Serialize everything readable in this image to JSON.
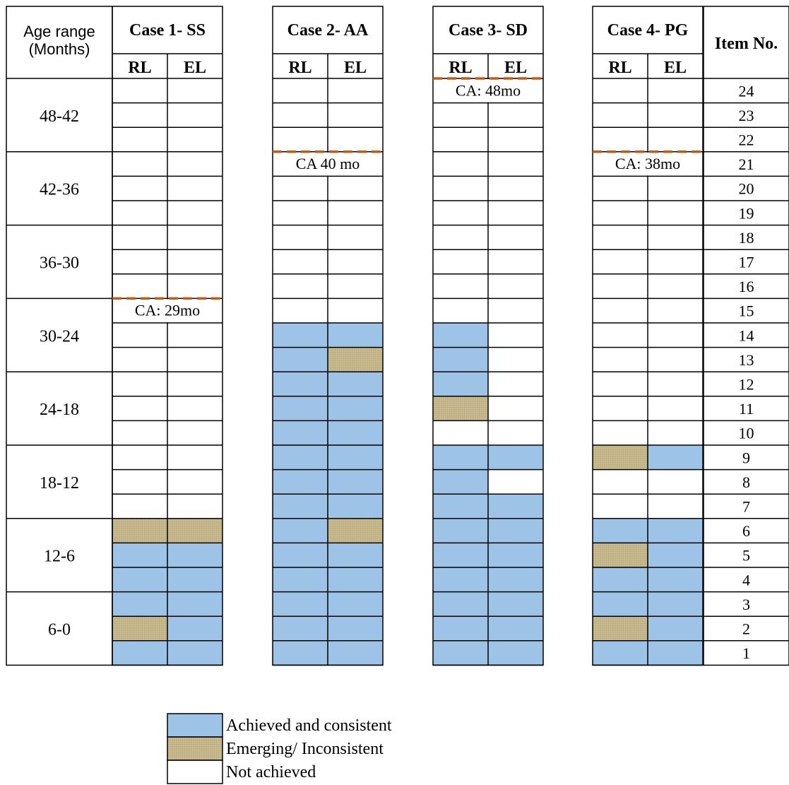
{
  "chart_data": {
    "type": "table",
    "header": {
      "age_range_line1": "Age range",
      "age_range_line2": "(Months)",
      "item_no": "Item No.",
      "sub_columns": [
        "RL",
        "EL"
      ]
    },
    "cases": [
      {
        "title": "Case 1- SS",
        "ca_label": "CA: 29mo"
      },
      {
        "title": "Case 2- AA",
        "ca_label": "CA 40 mo"
      },
      {
        "title": "Case 3- SD",
        "ca_label": "CA: 48mo"
      },
      {
        "title": "Case 4- PG",
        "ca_label": "CA: 38mo"
      }
    ],
    "ca_items": [
      15,
      21,
      24,
      21
    ],
    "age_groups": [
      "48-42",
      "42-36",
      "36-30",
      "30-24",
      "24-18",
      "18-12",
      "12-6",
      "6-0"
    ],
    "items": [
      24,
      23,
      22,
      21,
      20,
      19,
      18,
      17,
      16,
      15,
      14,
      13,
      12,
      11,
      10,
      9,
      8,
      7,
      6,
      5,
      4,
      3,
      2,
      1
    ],
    "status_key": {
      "A": "Achieved and consistent",
      "E": "Emerging/ Inconsistent",
      "N": "Not achieved"
    },
    "grid": [
      [
        "NN",
        "NN",
        "NN",
        "NN"
      ],
      [
        "NN",
        "NN",
        "NN",
        "NN"
      ],
      [
        "NN",
        "NN",
        "NN",
        "NN"
      ],
      [
        "NN",
        "NN",
        "NN",
        "NN"
      ],
      [
        "NN",
        "NN",
        "NN",
        "NN"
      ],
      [
        "NN",
        "NN",
        "NN",
        "NN"
      ],
      [
        "NN",
        "NN",
        "NN",
        "NN"
      ],
      [
        "NN",
        "NN",
        "NN",
        "NN"
      ],
      [
        "NN",
        "NN",
        "NN",
        "NN"
      ],
      [
        "NN",
        "NN",
        "NN",
        "NN"
      ],
      [
        "NN",
        "AA",
        "AN",
        "NN"
      ],
      [
        "NN",
        "AE",
        "AN",
        "NN"
      ],
      [
        "NN",
        "AA",
        "AN",
        "NN"
      ],
      [
        "NN",
        "AA",
        "EN",
        "NN"
      ],
      [
        "NN",
        "AA",
        "NN",
        "NN"
      ],
      [
        "NN",
        "AA",
        "AA",
        "EA"
      ],
      [
        "NN",
        "AA",
        "AN",
        "NN"
      ],
      [
        "NN",
        "AA",
        "AA",
        "NN"
      ],
      [
        "EE",
        "AE",
        "AA",
        "AA"
      ],
      [
        "AA",
        "AA",
        "AA",
        "EA"
      ],
      [
        "AA",
        "AA",
        "AA",
        "AA"
      ],
      [
        "AA",
        "AA",
        "AA",
        "AA"
      ],
      [
        "EA",
        "AA",
        "AA",
        "EA"
      ],
      [
        "AA",
        "AA",
        "AA",
        "AA"
      ]
    ],
    "colors": {
      "achieved": "#9dc3e6",
      "emerging": "#c4b68c",
      "not_achieved": "#ffffff",
      "ca_line": "#c55a11"
    },
    "legend": [
      {
        "status": "A",
        "label": "Achieved and consistent"
      },
      {
        "status": "E",
        "label": "Emerging/ Inconsistent"
      },
      {
        "status": "N",
        "label": "Not achieved"
      }
    ]
  }
}
